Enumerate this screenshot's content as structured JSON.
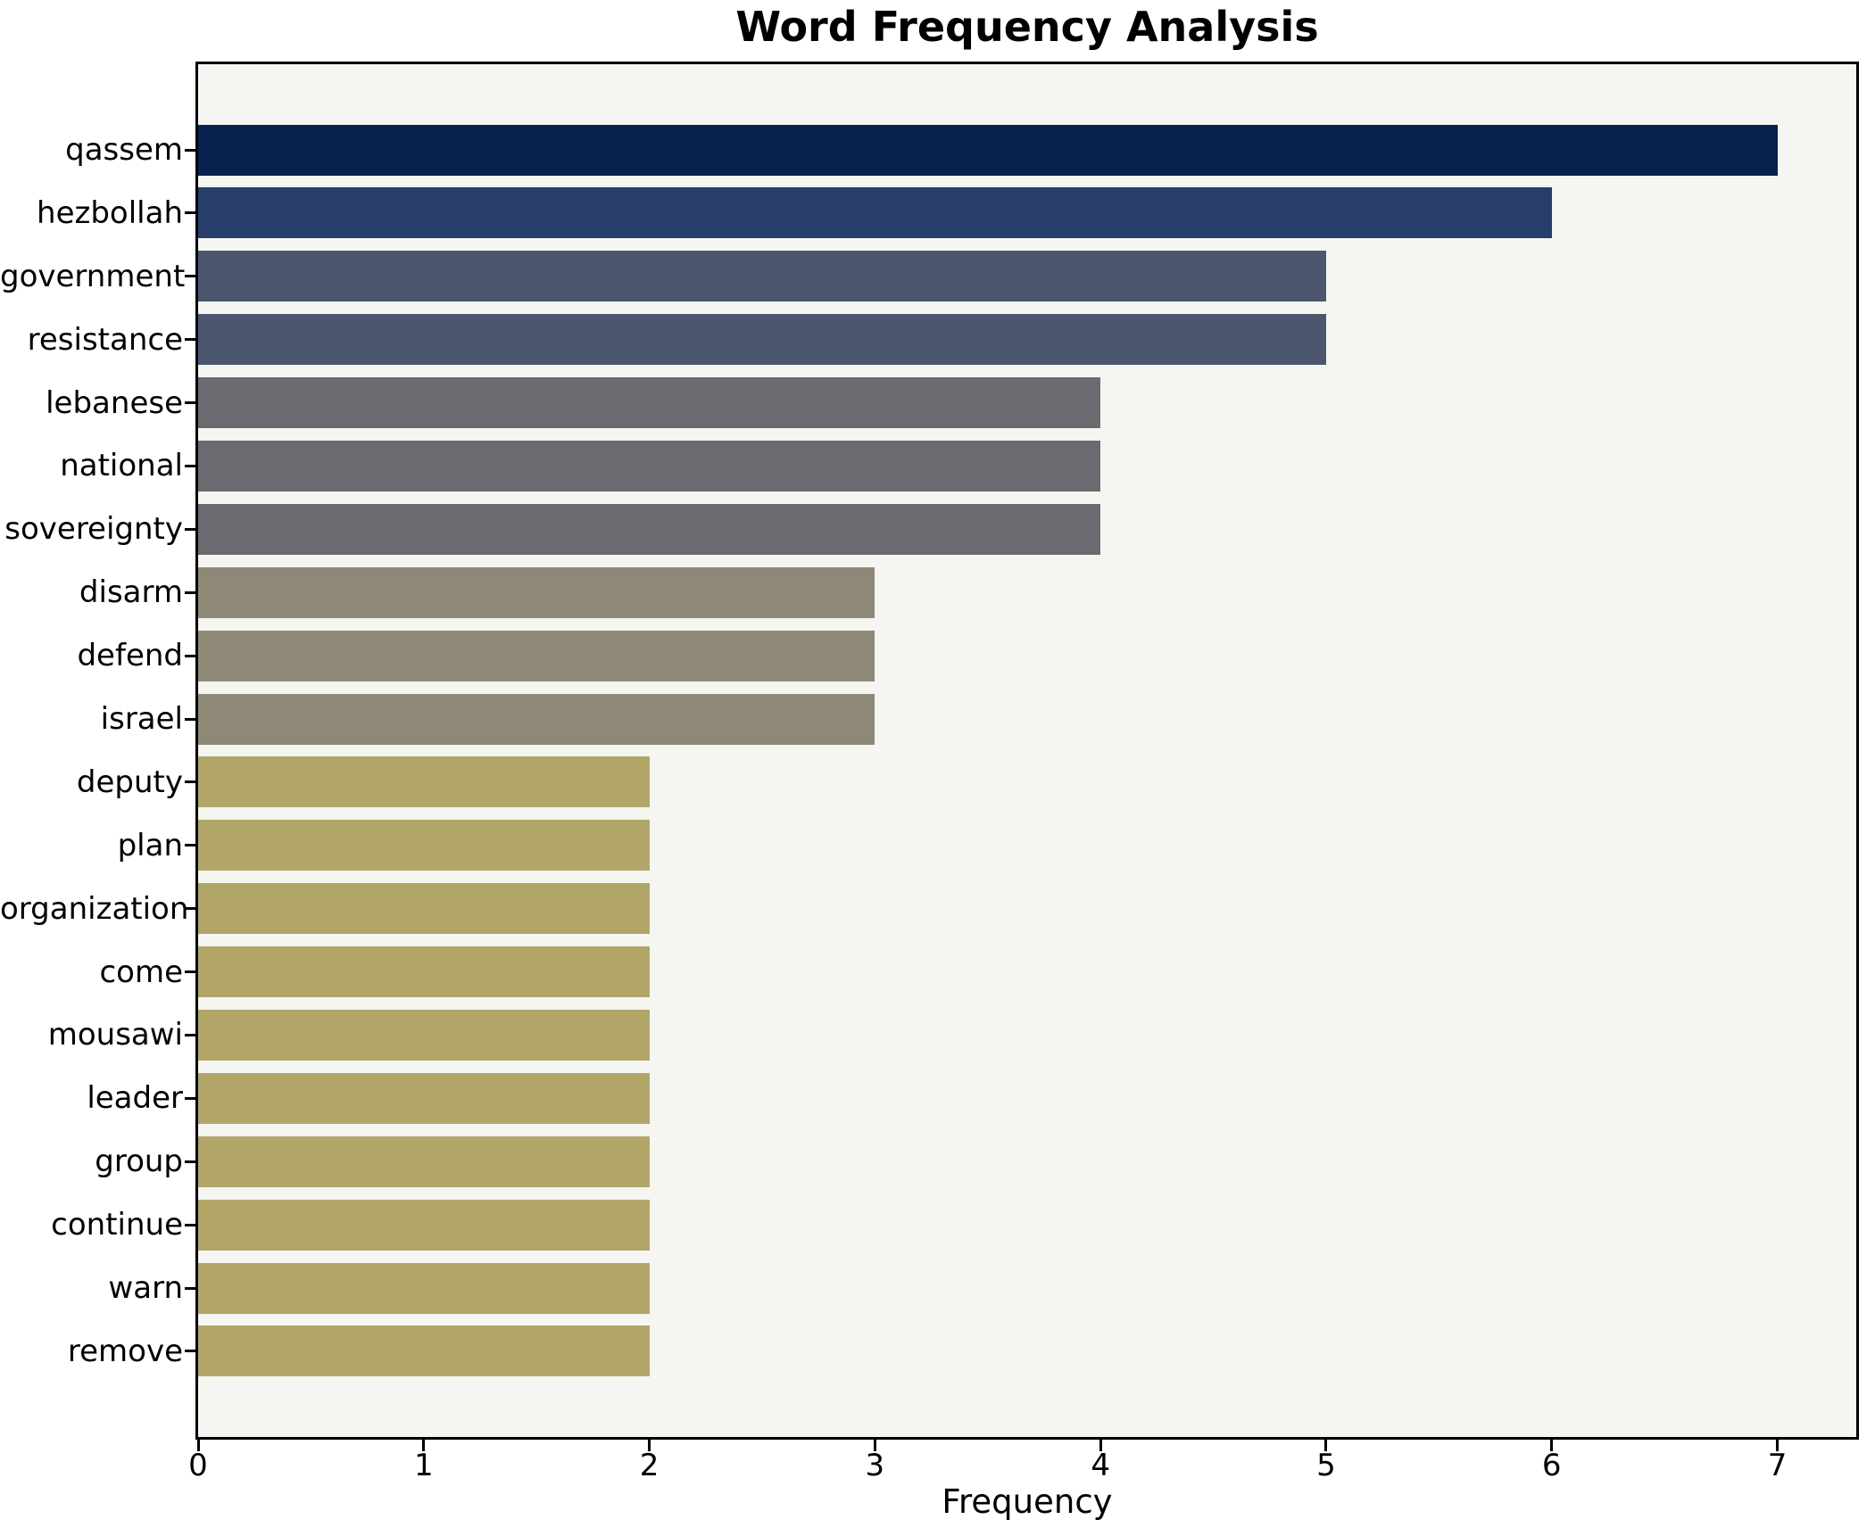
{
  "chart_data": {
    "type": "bar",
    "orientation": "horizontal",
    "title": "Word Frequency Analysis",
    "xlabel": "Frequency",
    "ylabel": "",
    "categories": [
      "qassem",
      "hezbollah",
      "government",
      "resistance",
      "lebanese",
      "national",
      "sovereignty",
      "disarm",
      "defend",
      "israel",
      "deputy",
      "plan",
      "organization",
      "come",
      "mousawi",
      "leader",
      "group",
      "continue",
      "warn",
      "remove"
    ],
    "values": [
      7,
      6,
      5,
      5,
      4,
      4,
      4,
      3,
      3,
      3,
      2,
      2,
      2,
      2,
      2,
      2,
      2,
      2,
      2,
      2
    ],
    "x_ticks": [
      0,
      1,
      2,
      3,
      4,
      5,
      6,
      7
    ],
    "xlim": [
      0,
      7.35
    ],
    "grid": false,
    "legend": "none",
    "bar_colors": [
      "#08214f",
      "#273d6a",
      "#4d566f",
      "#4d566f",
      "#6a6a70",
      "#6a6a70",
      "#6a6a70",
      "#8e8977",
      "#8e8977",
      "#8e8977",
      "#b1a668",
      "#b1a668",
      "#b1a668",
      "#b1a668",
      "#b1a668",
      "#b1a668",
      "#b1a668",
      "#b1a668",
      "#b1a668",
      "#b1a668"
    ]
  },
  "colors": {
    "figure_background": "#ffffff",
    "plot_background": "#f5f5f2",
    "spine": "#000000",
    "text": "#000000"
  }
}
